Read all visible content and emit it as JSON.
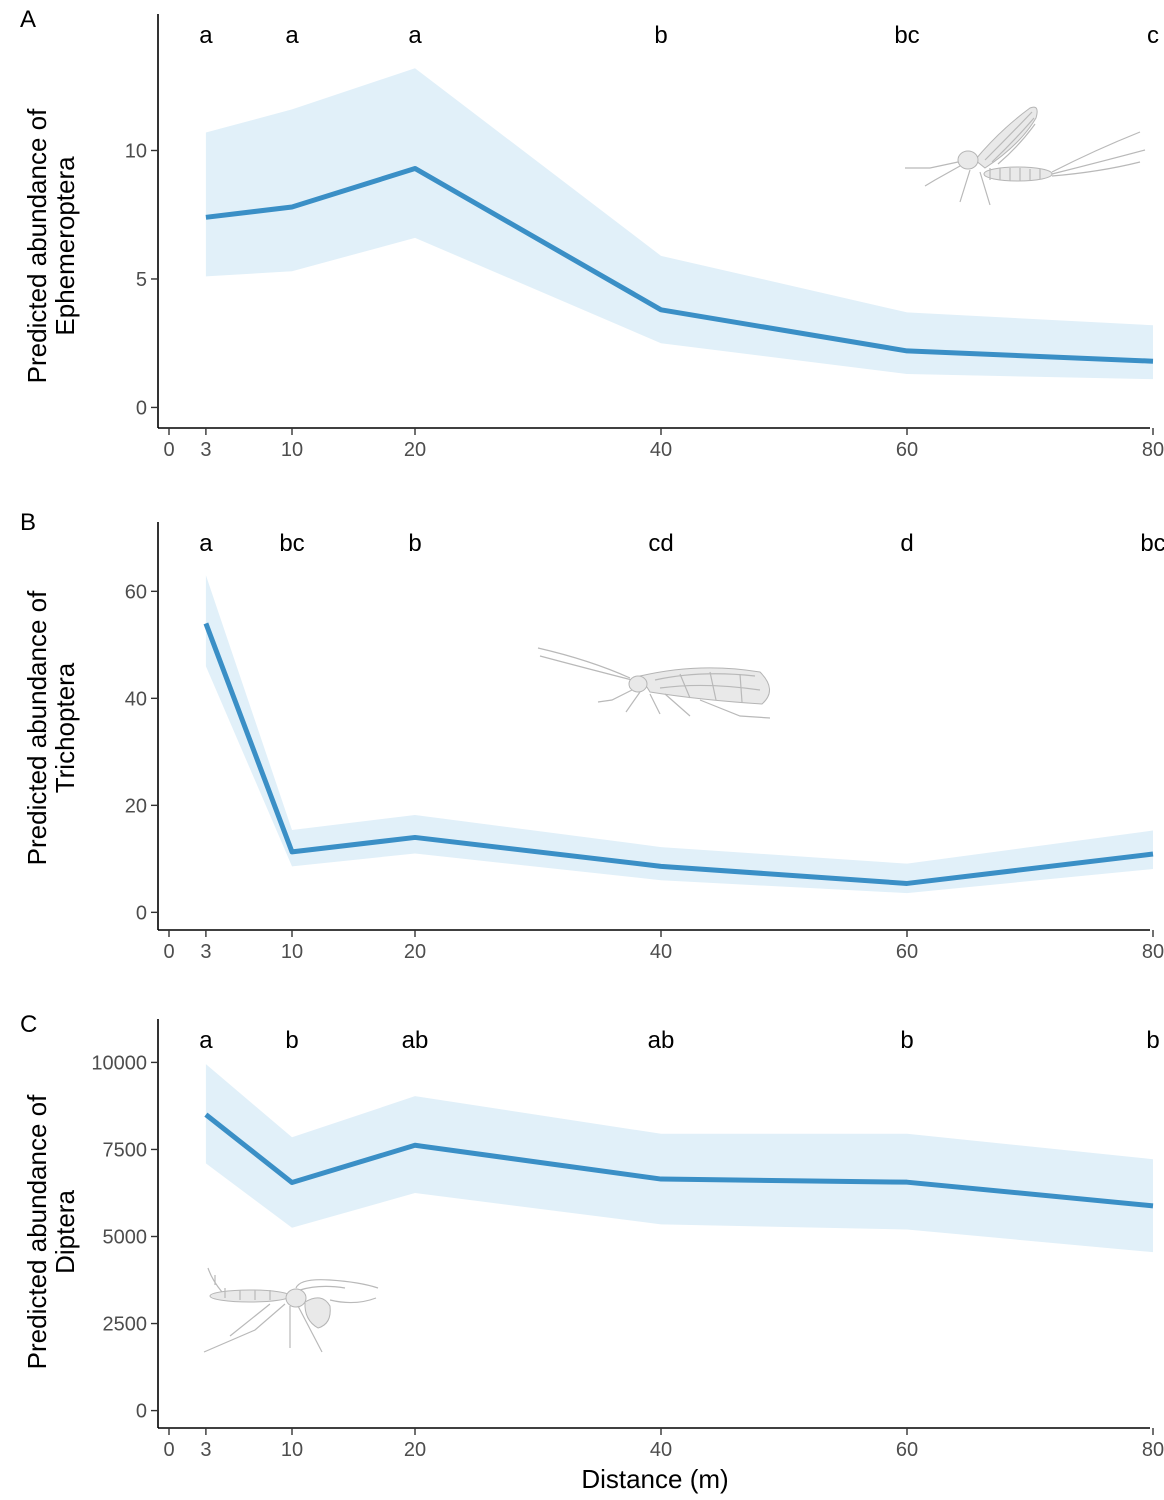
{
  "colors": {
    "line": "#3a8fc6",
    "ribbon": "#e1f0f9"
  },
  "x_axis_title": "Distance (m)",
  "chart_data": [
    {
      "type": "line",
      "panel_tag": "A",
      "ylabel_line1": "Predicted abundance of",
      "ylabel_line2": "Ephemeroptera",
      "x": [
        3,
        10,
        20,
        40,
        60,
        80
      ],
      "x_ticks": [
        0,
        3,
        10,
        20,
        40,
        60,
        80
      ],
      "xlim": [
        0,
        80
      ],
      "y_ticks": [
        0,
        5,
        10
      ],
      "y_tick_labels": [
        "0",
        "5",
        "10"
      ],
      "ylim": [
        -0.8,
        14.3
      ],
      "series": [
        {
          "values": [
            7.4,
            7.8,
            9.3,
            3.8,
            2.2,
            1.8
          ],
          "lower": [
            5.1,
            5.3,
            6.6,
            2.5,
            1.3,
            1.1
          ],
          "upper": [
            10.7,
            11.6,
            13.2,
            5.9,
            3.7,
            3.2
          ]
        }
      ],
      "letters": [
        "a",
        "a",
        "a",
        "b",
        "bc",
        "c"
      ],
      "insect": "mayfly-illustration",
      "insect_position": "top-right"
    },
    {
      "type": "line",
      "panel_tag": "B",
      "ylabel_line1": "Predicted abundance of",
      "ylabel_line2": "Trichoptera",
      "x": [
        3,
        10,
        20,
        40,
        60,
        80
      ],
      "x_ticks": [
        0,
        3,
        10,
        20,
        40,
        60,
        80
      ],
      "xlim": [
        0,
        80
      ],
      "y_ticks": [
        0,
        20,
        40,
        60
      ],
      "y_tick_labels": [
        "0",
        "20",
        "40",
        "60"
      ],
      "ylim": [
        -3.3,
        68.1
      ],
      "series": [
        {
          "values": [
            54,
            11.3,
            14,
            8.6,
            5.4,
            10.9
          ],
          "lower": [
            46,
            8.6,
            11,
            6,
            3.6,
            8.1
          ],
          "upper": [
            63,
            15.4,
            18.2,
            12.2,
            9.1,
            15.3
          ]
        }
      ],
      "letters": [
        "a",
        "bc",
        "b",
        "cd",
        "d",
        "bc"
      ],
      "insect": "caddisfly-illustration",
      "insect_position": "center"
    },
    {
      "type": "line",
      "panel_tag": "C",
      "ylabel_line1": "Predicted abundance of",
      "ylabel_line2": "Diptera",
      "x": [
        3,
        10,
        20,
        40,
        60,
        80
      ],
      "x_ticks": [
        0,
        3,
        10,
        20,
        40,
        60,
        80
      ],
      "xlim": [
        0,
        80
      ],
      "y_ticks": [
        0,
        2500,
        5000,
        7500,
        10000
      ],
      "y_tick_labels": [
        "0",
        "2500",
        "5000",
        "7500",
        "10000"
      ],
      "ylim": [
        -500,
        10500
      ],
      "series": [
        {
          "values": [
            8500,
            6550,
            7620,
            6650,
            6560,
            5880
          ],
          "lower": [
            7100,
            5250,
            6250,
            5350,
            5200,
            4550
          ],
          "upper": [
            9950,
            7850,
            9030,
            7950,
            7950,
            7220
          ]
        }
      ],
      "letters": [
        "a",
        "b",
        "ab",
        "ab",
        "b",
        "b"
      ],
      "insect": "midge-illustration",
      "insect_position": "bottom-left"
    }
  ]
}
